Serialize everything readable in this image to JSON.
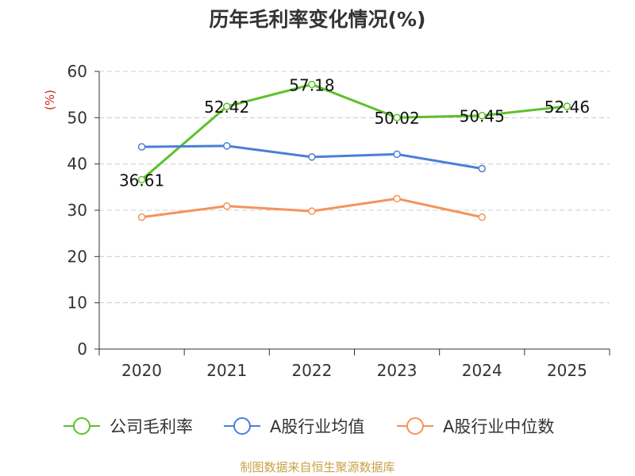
{
  "chart_data": {
    "type": "line",
    "title": "历年毛利率变化情况(%)",
    "ylabel": "(%)",
    "xlabel": "",
    "categories": [
      "2020",
      "2021",
      "2022",
      "2023",
      "2024",
      "2025"
    ],
    "yticks": [
      0,
      10,
      20,
      30,
      40,
      50,
      60
    ],
    "ylim": [
      0,
      60
    ],
    "grid": true,
    "legend_position": "bottom",
    "series": [
      {
        "name": "公司毛利率",
        "color": "#5dc12a",
        "values": [
          36.61,
          52.42,
          57.18,
          50.02,
          50.45,
          52.46
        ],
        "labels": [
          "36.61",
          "52.42",
          "57.18",
          "50.02",
          "50.45",
          "52.46"
        ]
      },
      {
        "name": "A股行业均值",
        "color": "#4a7fd8",
        "values": [
          43.7,
          43.9,
          41.5,
          42.1,
          39.0,
          null
        ]
      },
      {
        "name": "A股行业中位数",
        "color": "#f4935c",
        "values": [
          28.5,
          30.9,
          29.8,
          32.5,
          28.5,
          null
        ]
      }
    ]
  },
  "source": {
    "text": "制图数据来自恒生聚源数据库",
    "color": "#c8a24a"
  },
  "colors": {
    "ylabel": "#d42020",
    "axis": "#333333",
    "grid": "#cccccc",
    "text": "#333333"
  }
}
